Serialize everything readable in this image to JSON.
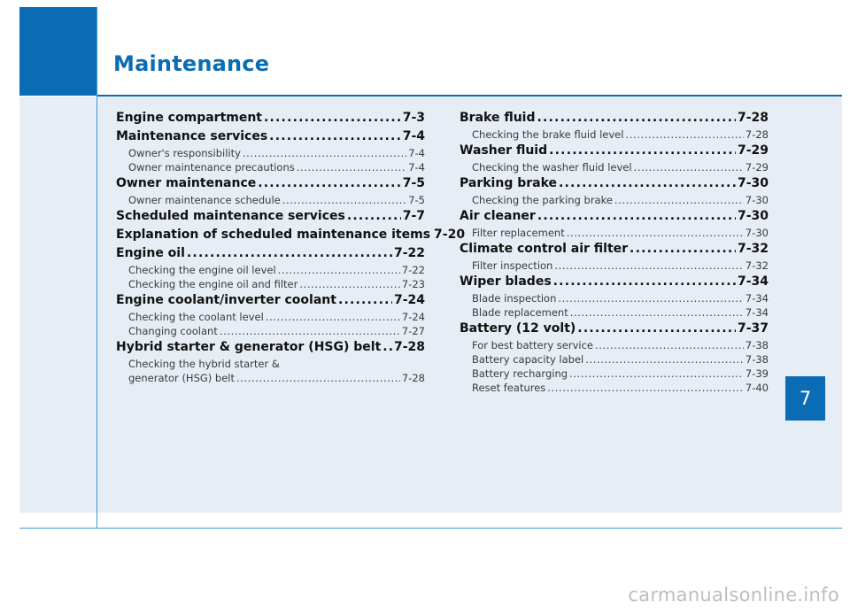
{
  "page": {
    "title": "Maintenance",
    "chapter": "7",
    "watermark": "carmanualsonline.info"
  },
  "left_column": [
    {
      "title": "Engine compartment",
      "page": "7-3",
      "subs": []
    },
    {
      "title": "Maintenance services",
      "page": "7-4",
      "subs": [
        {
          "title": "Owner's responsibility",
          "page": "7-4"
        },
        {
          "title": "Owner maintenance precautions",
          "page": "7-4"
        }
      ]
    },
    {
      "title": "Owner maintenance",
      "page": "7-5",
      "subs": [
        {
          "title": "Owner maintenance schedule",
          "page": "7-5"
        }
      ]
    },
    {
      "title": "Scheduled maintenance services",
      "page": "7-7",
      "subs": []
    },
    {
      "title": "Explanation of scheduled maintenance items",
      "page": "7-20",
      "subs": []
    },
    {
      "title": "Engine oil",
      "page": "7-22",
      "subs": [
        {
          "title": "Checking the engine oil level",
          "page": "7-22"
        },
        {
          "title": "Checking the engine oil and filter",
          "page": "7-23"
        }
      ]
    },
    {
      "title": "Engine coolant/inverter coolant",
      "page": "7-24",
      "subs": [
        {
          "title": "Checking the coolant level",
          "page": "7-24"
        },
        {
          "title": "Changing coolant",
          "page": "7-27"
        }
      ]
    },
    {
      "title": "Hybrid starter & generator (HSG) belt",
      "page": "7-28",
      "subs": [
        {
          "title_line1": "Checking the hybrid starter &",
          "title": "generator (HSG) belt",
          "page": "7-28"
        }
      ]
    }
  ],
  "right_column": [
    {
      "title": "Brake fluid",
      "page": "7-28",
      "subs": [
        {
          "title": "Checking the brake fluid level",
          "page": "7-28"
        }
      ]
    },
    {
      "title": "Washer fluid",
      "page": "7-29",
      "subs": [
        {
          "title": "Checking the washer fluid level",
          "page": "7-29"
        }
      ]
    },
    {
      "title": "Parking brake",
      "page": "7-30",
      "subs": [
        {
          "title": "Checking the parking brake",
          "page": "7-30"
        }
      ]
    },
    {
      "title": "Air cleaner",
      "page": "7-30",
      "subs": [
        {
          "title": "Filter replacement",
          "page": "7-30"
        }
      ]
    },
    {
      "title": "Climate control air filter",
      "page": "7-32",
      "subs": [
        {
          "title": "Filter inspection",
          "page": "7-32"
        }
      ]
    },
    {
      "title": "Wiper blades",
      "page": "7-34",
      "subs": [
        {
          "title": "Blade inspection",
          "page": "7-34"
        },
        {
          "title": "Blade replacement",
          "page": "7-34"
        }
      ]
    },
    {
      "title": "Battery (12 volt)",
      "page": "7-37",
      "subs": [
        {
          "title": "For best battery service",
          "page": "7-38"
        },
        {
          "title": "Battery capacity label",
          "page": "7-38"
        },
        {
          "title": "Battery recharging",
          "page": "7-39"
        },
        {
          "title": "Reset features",
          "page": "7-40"
        }
      ]
    }
  ]
}
